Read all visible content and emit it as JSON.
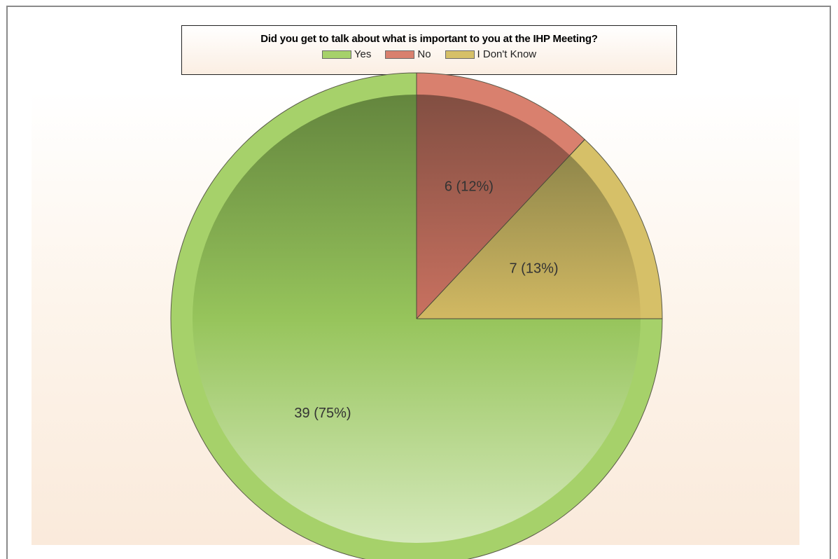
{
  "chart_data": {
    "type": "pie",
    "title": "Did you get to talk about what is important to you at the IHP Meeting?",
    "legend_position": "top-center",
    "slices": [
      {
        "name": "Yes",
        "value": 39,
        "percent": 75,
        "label": "39 (75%)",
        "color": "#a6d16a"
      },
      {
        "name": "No",
        "value": 6,
        "percent": 12,
        "label": "6 (12%)",
        "color": "#d9806e"
      },
      {
        "name": "I Don't Know",
        "value": 7,
        "percent": 13,
        "label": "7 (13%)",
        "color": "#d6c068"
      }
    ]
  }
}
